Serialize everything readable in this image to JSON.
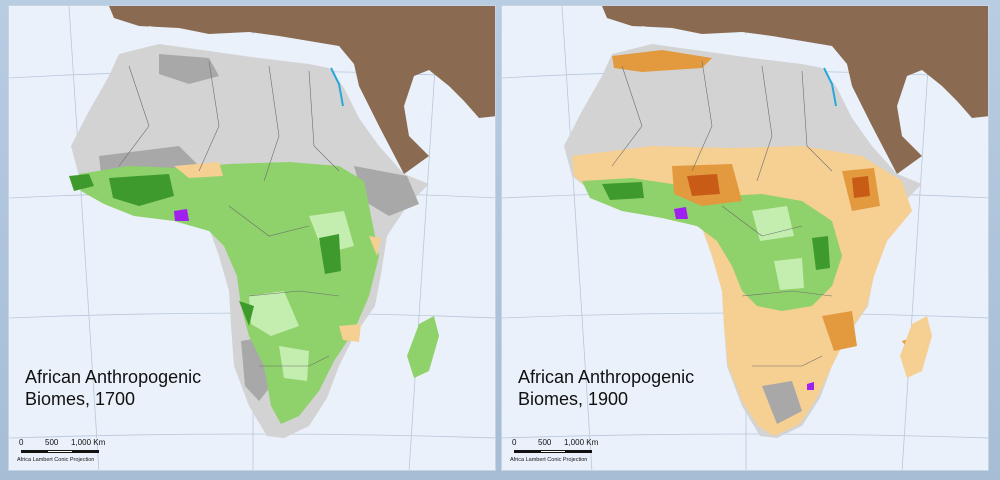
{
  "maps": [
    {
      "title_line1": "African Anthropogenic",
      "title_line2": "Biomes, 1700",
      "year": 1700
    },
    {
      "title_line1": "African Anthropogenic",
      "title_line2": "Biomes, 1900",
      "year": 1900
    }
  ],
  "scalebar": {
    "tick_0": "0",
    "tick_500": "500",
    "tick_1000": "1,000 Km",
    "projection": "Africa Lambert Conic Projection"
  },
  "colors": {
    "ocean": "#eaf1fa",
    "desert": "#d3d3d3",
    "desert_dark": "#a8a8a8",
    "forest": "#8fd16a",
    "forest_light": "#c4eeb0",
    "forest_dark": "#3f9a2e",
    "rangeland": "#f6cf93",
    "cropland": "#e39a3f",
    "village": "#c85c16",
    "dense": "#a020f0",
    "eurasia": "#8a6b52",
    "water": "#29a7d8"
  }
}
